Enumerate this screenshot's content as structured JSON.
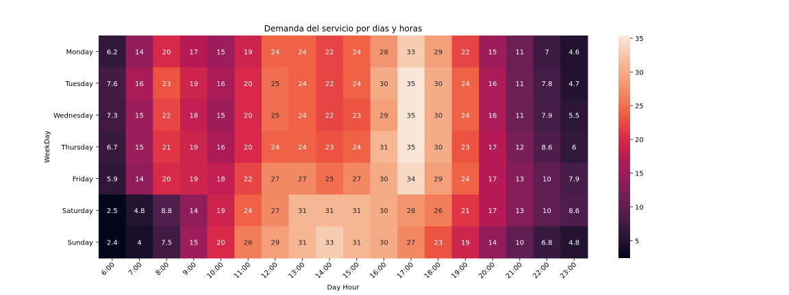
{
  "chart_data": {
    "type": "heatmap",
    "title": "Demanda del servicio por dias y horas",
    "xlabel": "Day Hour",
    "ylabel": "WeekDay",
    "x": [
      "6:00",
      "7:00",
      "8:00",
      "9:00",
      "10:00",
      "11:00",
      "12:00",
      "13:00",
      "14:00",
      "15:00",
      "16:00",
      "17:00",
      "18:00",
      "19:00",
      "20:00",
      "21:00",
      "22:00",
      "23:00"
    ],
    "y": [
      "Monday",
      "Tuesday",
      "Wednesday",
      "Thursday",
      "Friday",
      "Saturday",
      "Sunday"
    ],
    "values": [
      [
        6.2,
        14,
        20,
        17,
        15,
        19,
        24,
        24,
        22,
        24,
        28,
        33,
        29,
        22,
        15,
        11,
        7,
        4.6
      ],
      [
        7.6,
        16,
        23,
        19,
        16,
        20,
        25,
        24,
        22,
        24,
        30,
        35,
        30,
        24,
        16,
        11,
        7.8,
        4.7
      ],
      [
        7.3,
        15,
        22,
        18,
        15,
        20,
        25,
        24,
        22,
        23,
        29,
        35,
        30,
        24,
        16,
        11,
        7.9,
        5.5
      ],
      [
        6.7,
        15,
        21,
        19,
        16,
        20,
        24,
        24,
        23,
        24,
        31,
        35,
        30,
        23,
        17,
        12,
        8.6,
        6
      ],
      [
        5.9,
        14,
        20,
        19,
        18,
        22,
        27,
        27,
        25,
        27,
        30,
        34,
        29,
        24,
        17,
        13,
        10,
        7.9
      ],
      [
        2.5,
        4.8,
        8.8,
        14,
        19,
        24,
        27,
        31,
        31,
        31,
        30,
        28,
        26,
        21,
        17,
        13,
        10,
        8.6
      ],
      [
        2.4,
        4,
        7.5,
        15,
        20,
        26,
        29,
        31,
        33,
        31,
        30,
        27,
        23,
        19,
        14,
        10,
        6.8,
        4.8
      ]
    ],
    "colorbar": {
      "min": 2.4,
      "max": 35.4,
      "ticks": [
        5,
        10,
        15,
        20,
        25,
        30,
        35
      ],
      "colormap": "rocket",
      "stops": [
        "#03051a",
        "#2a1636",
        "#4c1d4b",
        "#701f57",
        "#961c5b",
        "#bb1a54",
        "#dc2c46",
        "#ef5a40",
        "#f3825e",
        "#f5a47e",
        "#f6c5a6",
        "#faebdd"
      ]
    }
  }
}
